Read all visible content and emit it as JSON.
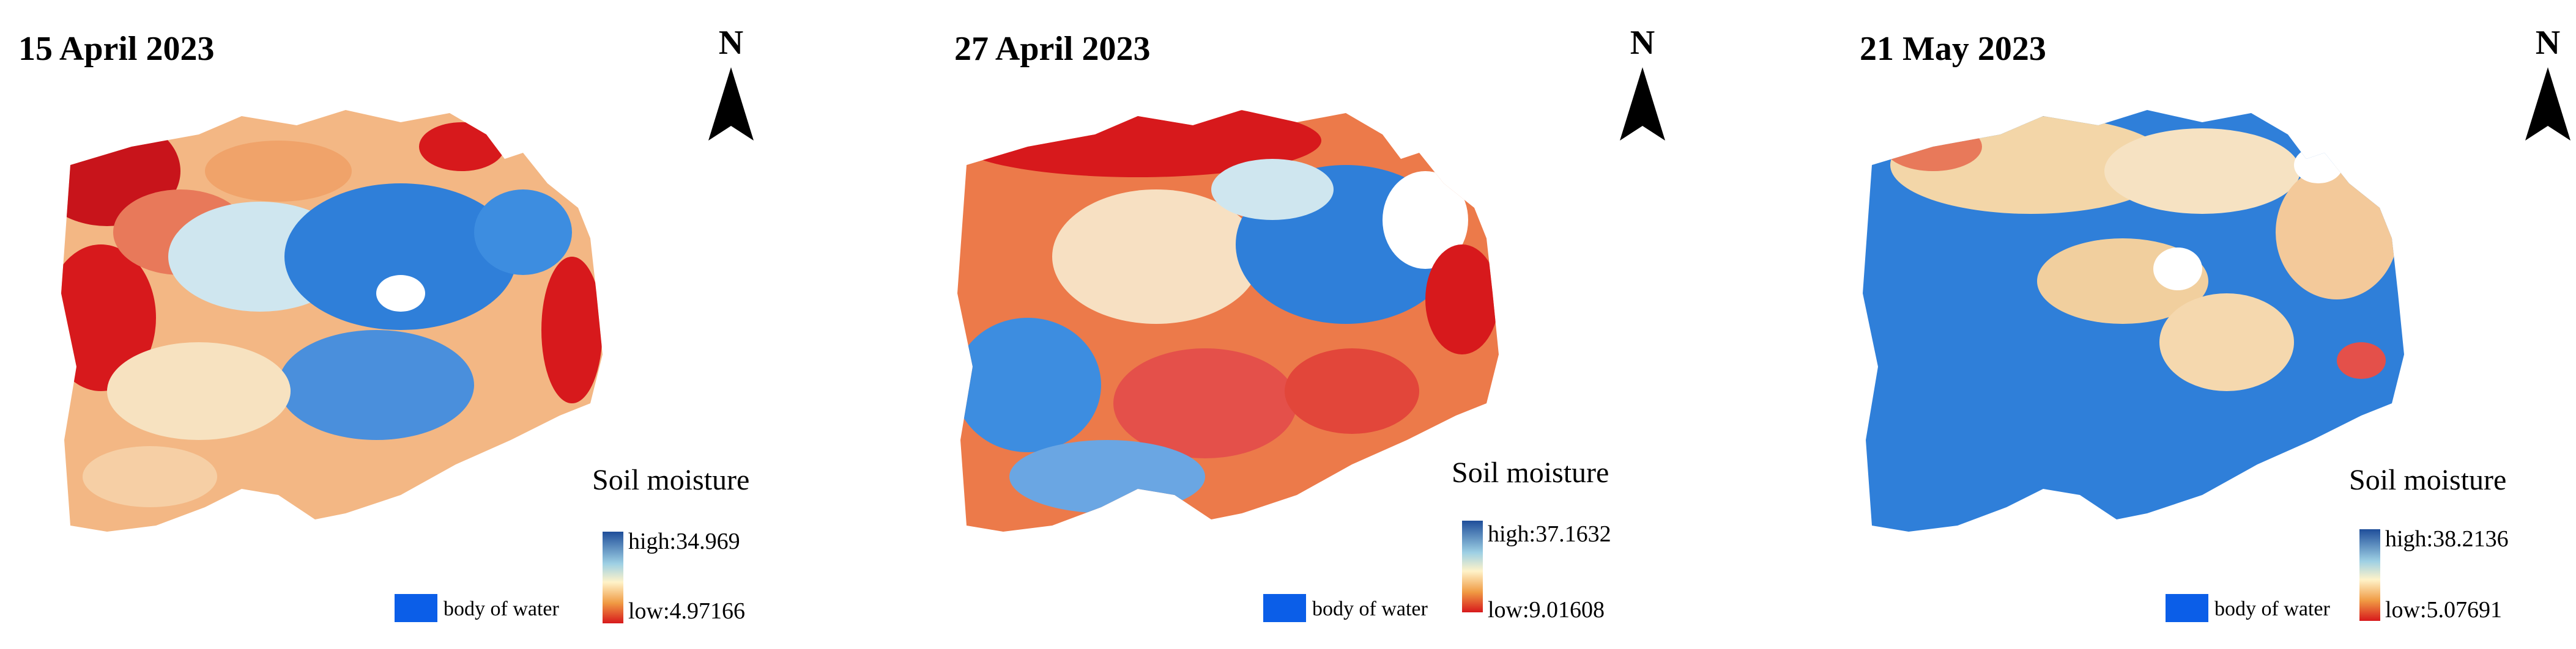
{
  "legend": {
    "title": "Soil moisture",
    "water_label": "body of water",
    "water_color": "#0b5ee8",
    "ramp_colors": [
      "#1f4e9a",
      "#9ed0e4",
      "#fff3c9",
      "#f09a43",
      "#d7191c"
    ]
  },
  "north_label": "N",
  "panels": [
    {
      "date": "15 April 2023",
      "high": "high:34.969",
      "low": "low:4.97166"
    },
    {
      "date": "27 April 2023",
      "high": "high:37.1632",
      "low": "low:9.01608"
    },
    {
      "date": "21 May 2023",
      "high": "high:38.2136",
      "low": "low:5.07691"
    }
  ]
}
